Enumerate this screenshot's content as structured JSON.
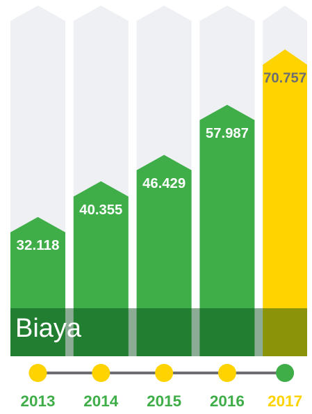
{
  "chart_data": {
    "type": "bar",
    "label": "Biaya",
    "categories": [
      "2013",
      "2014",
      "2015",
      "2016",
      "2017"
    ],
    "values": [
      32.118,
      40.355,
      46.429,
      57.987,
      70.757
    ],
    "colors": [
      "#3fae49",
      "#3fae49",
      "#3fae49",
      "#3fae49",
      "#fed300"
    ]
  }
}
